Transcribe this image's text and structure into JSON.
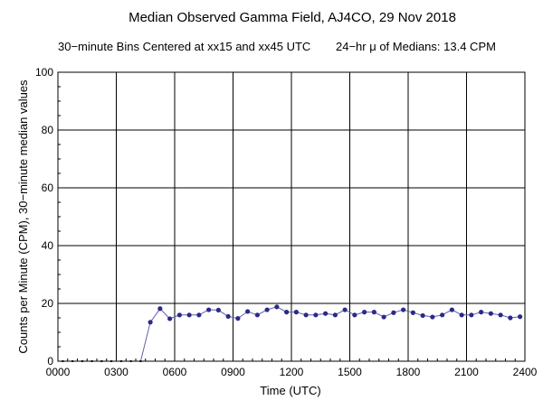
{
  "chart_data": {
    "type": "line",
    "title": "Median Observed Gamma Field, AJ4CO, 29 Nov 2018",
    "subtitle_left": "30−minute Bins Centered at xx15 and xx45 UTC",
    "subtitle_right": "24−hr μ of Medians: 13.4 CPM",
    "xlabel": "Time (UTC)",
    "ylabel": "Counts per Minute (CPM), 30−minute median values",
    "xlim": [
      0,
      24
    ],
    "ylim": [
      0,
      100
    ],
    "x_ticks": [
      {
        "value": 0,
        "label": "0000"
      },
      {
        "value": 3,
        "label": "0300"
      },
      {
        "value": 6,
        "label": "0600"
      },
      {
        "value": 9,
        "label": "0900"
      },
      {
        "value": 12,
        "label": "1200"
      },
      {
        "value": 15,
        "label": "1500"
      },
      {
        "value": 18,
        "label": "1800"
      },
      {
        "value": 21,
        "label": "2100"
      },
      {
        "value": 24,
        "label": "2400"
      }
    ],
    "y_ticks": [
      {
        "value": 0,
        "label": "0"
      },
      {
        "value": 20,
        "label": "20"
      },
      {
        "value": 40,
        "label": "40"
      },
      {
        "value": 60,
        "label": "60"
      },
      {
        "value": 80,
        "label": "80"
      },
      {
        "value": 100,
        "label": "100"
      }
    ],
    "grid": true,
    "line_color": "#6060a8",
    "marker_color": "#2a2a8a",
    "series": [
      {
        "x": [
          0.25,
          0.75,
          1.25,
          1.75,
          2.25,
          2.75,
          3.25,
          3.75,
          4.25,
          4.75,
          5.25,
          5.75,
          6.25,
          6.75,
          7.25,
          7.75,
          8.25,
          8.75,
          9.25,
          9.75,
          10.25,
          10.75,
          11.25,
          11.75,
          12.25,
          12.75,
          13.25,
          13.75,
          14.25,
          14.75,
          15.25,
          15.75,
          16.25,
          16.75,
          17.25,
          17.75,
          18.25,
          18.75,
          19.25,
          19.75,
          20.25,
          20.75,
          21.25,
          21.75,
          22.25,
          22.75,
          23.25,
          23.75
        ],
        "y": [
          0,
          0,
          0,
          0,
          0,
          0,
          0,
          0,
          0,
          13.5,
          18.2,
          14.7,
          16.0,
          16.0,
          16.0,
          17.8,
          17.7,
          15.5,
          14.8,
          17.2,
          16.0,
          17.8,
          18.8,
          17.0,
          17.0,
          16.0,
          16.0,
          16.5,
          16.0,
          17.8,
          16.0,
          17.0,
          17.0,
          15.3,
          16.8,
          17.8,
          16.8,
          15.8,
          15.3,
          16.0,
          17.8,
          16.0,
          16.0,
          17.0,
          16.5,
          16.0,
          15.0,
          15.4
        ]
      }
    ]
  }
}
